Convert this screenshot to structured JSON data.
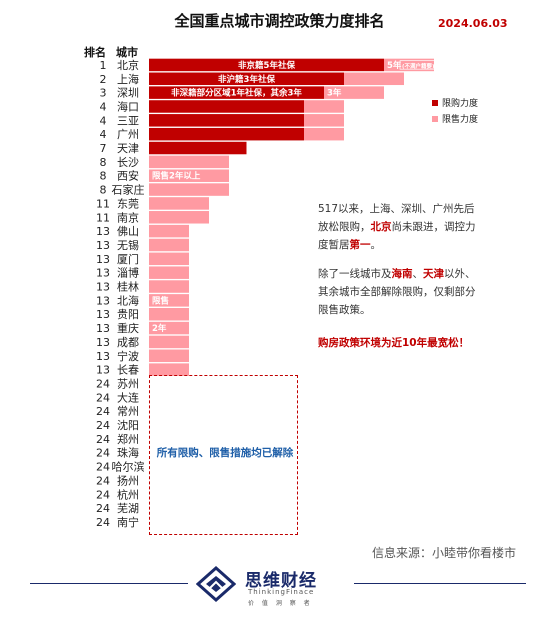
{
  "title": "全国重点城市调控政策力度排名",
  "date": "2024.06.03",
  "header": {
    "rank": "排名",
    "city": "城市"
  },
  "legend": [
    {
      "label": "限购力度",
      "color": "#c00000"
    },
    {
      "label": "限售力度",
      "color": "#ff9aa2"
    }
  ],
  "chart_data": {
    "type": "bar",
    "title": "全国重点城市调控政策力度排名",
    "series": [
      {
        "name": "限购力度",
        "color": "#c00000"
      },
      {
        "name": "限售力度",
        "color": "#ff9aa2"
      }
    ],
    "rows": [
      {
        "rank": "1",
        "city": "北京",
        "purchase": 4.7,
        "sale": 1.0
      },
      {
        "rank": "2",
        "city": "上海",
        "purchase": 3.9,
        "sale": 1.2
      },
      {
        "rank": "3",
        "city": "深圳",
        "purchase": 3.5,
        "sale": 1.2
      },
      {
        "rank": "4",
        "city": "海口",
        "purchase": 3.1,
        "sale": 0.8
      },
      {
        "rank": "4",
        "city": "三亚",
        "purchase": 3.1,
        "sale": 0.8
      },
      {
        "rank": "4",
        "city": "广州",
        "purchase": 3.1,
        "sale": 0.8
      },
      {
        "rank": "7",
        "city": "天津",
        "purchase": 1.95,
        "sale": 0
      },
      {
        "rank": "8",
        "city": "长沙",
        "purchase": 0,
        "sale": 1.6
      },
      {
        "rank": "8",
        "city": "西安",
        "purchase": 0,
        "sale": 1.6
      },
      {
        "rank": "8",
        "city": "石家庄",
        "purchase": 0,
        "sale": 1.6
      },
      {
        "rank": "11",
        "city": "东莞",
        "purchase": 0,
        "sale": 1.2
      },
      {
        "rank": "11",
        "city": "南京",
        "purchase": 0,
        "sale": 1.2
      },
      {
        "rank": "13",
        "city": "佛山",
        "purchase": 0,
        "sale": 0.8
      },
      {
        "rank": "13",
        "city": "无锡",
        "purchase": 0,
        "sale": 0.8
      },
      {
        "rank": "13",
        "city": "厦门",
        "purchase": 0,
        "sale": 0.8
      },
      {
        "rank": "13",
        "city": "淄博",
        "purchase": 0,
        "sale": 0.8
      },
      {
        "rank": "13",
        "city": "桂林",
        "purchase": 0,
        "sale": 0.8
      },
      {
        "rank": "13",
        "city": "北海",
        "purchase": 0,
        "sale": 0.8
      },
      {
        "rank": "13",
        "city": "贵阳",
        "purchase": 0,
        "sale": 0.8
      },
      {
        "rank": "13",
        "city": "重庆",
        "purchase": 0,
        "sale": 0.8
      },
      {
        "rank": "13",
        "city": "成都",
        "purchase": 0,
        "sale": 0.8
      },
      {
        "rank": "13",
        "city": "宁波",
        "purchase": 0,
        "sale": 0.8
      },
      {
        "rank": "13",
        "city": "长春",
        "purchase": 0,
        "sale": 0.8
      },
      {
        "rank": "24",
        "city": "苏州",
        "purchase": 0,
        "sale": 0
      },
      {
        "rank": "24",
        "city": "大连",
        "purchase": 0,
        "sale": 0
      },
      {
        "rank": "24",
        "city": "常州",
        "purchase": 0,
        "sale": 0
      },
      {
        "rank": "24",
        "city": "沈阳",
        "purchase": 0,
        "sale": 0
      },
      {
        "rank": "24",
        "city": "郑州",
        "purchase": 0,
        "sale": 0
      },
      {
        "rank": "24",
        "city": "珠海",
        "purchase": 0,
        "sale": 0
      },
      {
        "rank": "24",
        "city": "哈尔滨",
        "purchase": 0,
        "sale": 0
      },
      {
        "rank": "24",
        "city": "扬州",
        "purchase": 0,
        "sale": 0
      },
      {
        "rank": "24",
        "city": "杭州",
        "purchase": 0,
        "sale": 0
      },
      {
        "rank": "24",
        "city": "芜湖",
        "purchase": 0,
        "sale": 0
      },
      {
        "rank": "24",
        "city": "南宁",
        "purchase": 0,
        "sale": 0
      }
    ],
    "bar_labels": [
      {
        "row": 0,
        "text": "非京籍5年社保",
        "on": "purchase",
        "color": "#ffffff"
      },
      {
        "row": 0,
        "text": "5年",
        "on": "sale",
        "color": "#ffffff"
      },
      {
        "row": 0,
        "text": "(不满户籍要)",
        "on": "sale_box",
        "color": "#ffffff"
      },
      {
        "row": 1,
        "text": "非沪籍3年社保",
        "on": "purchase",
        "color": "#ffffff"
      },
      {
        "row": 2,
        "text": "非深籍部分区域1年社保，其余3年",
        "on": "purchase",
        "color": "#ffffff"
      },
      {
        "row": 2,
        "text": "3年",
        "on": "sale",
        "color": "#ffffff"
      },
      {
        "row": 8,
        "text": "限售2年以上",
        "on": "sale",
        "color": "#ffffff"
      },
      {
        "row": 17,
        "text": "限售",
        "on": "sale",
        "color": "#ffffff"
      },
      {
        "row": 19,
        "text": "2年",
        "on": "sale",
        "color": "#ffffff"
      }
    ]
  },
  "annotation_cleared": "所有限购、限售措施均已解除",
  "notes": {
    "n1_a": "517以来，上海、深圳、广州先后放松限购，",
    "n1_b": "北京",
    "n1_c": "尚未跟进，调控力度暂居",
    "n1_d": "第一",
    "n1_e": "。",
    "n2_a": "除了一线城市及",
    "n2_b": "海南",
    "n2_c": "、",
    "n2_d": "天津",
    "n2_e": "以外、其余城市全部解除限购，仅剩部分限售政策。",
    "n3": "购房政策环境为近10年最宽松！"
  },
  "source": "信息来源：小睦带你看楼市",
  "brand": {
    "name": "思维财经",
    "en": "ThinkingFinace",
    "sub": "价 值 洞 察 者"
  }
}
